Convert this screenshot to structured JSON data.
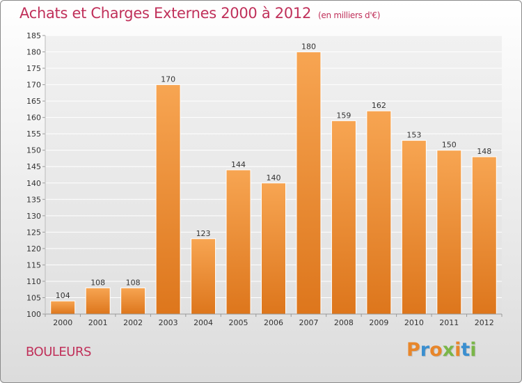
{
  "header": {
    "title": "Achats et Charges Externes 2000 à 2012",
    "unit": "(en milliers d'€)"
  },
  "footer": {
    "commune": "BOULEURS",
    "logo_text": "Proxiti",
    "logo_colors": [
      "#e8862a",
      "#3a8fd0",
      "#e8862a",
      "#7ab648",
      "#e8862a",
      "#3a8fd0",
      "#7ab648"
    ]
  },
  "colors": {
    "bar_top": "#f7a552",
    "bar_bottom": "#dd761c",
    "title": "#c0305a",
    "grid": "#ffffff"
  },
  "chart_data": {
    "type": "bar",
    "categories": [
      "2000",
      "2001",
      "2002",
      "2003",
      "2004",
      "2005",
      "2006",
      "2007",
      "2008",
      "2009",
      "2010",
      "2011",
      "2012"
    ],
    "values": [
      104,
      108,
      108,
      170,
      123,
      144,
      140,
      180,
      159,
      162,
      153,
      150,
      148
    ],
    "title": "Achats et Charges Externes 2000 à 2012",
    "xlabel": "",
    "ylabel": "",
    "ylim": [
      100,
      185
    ],
    "yticks": [
      100,
      105,
      110,
      115,
      120,
      125,
      130,
      135,
      140,
      145,
      150,
      155,
      160,
      165,
      170,
      175,
      180,
      185
    ],
    "grid": true
  }
}
